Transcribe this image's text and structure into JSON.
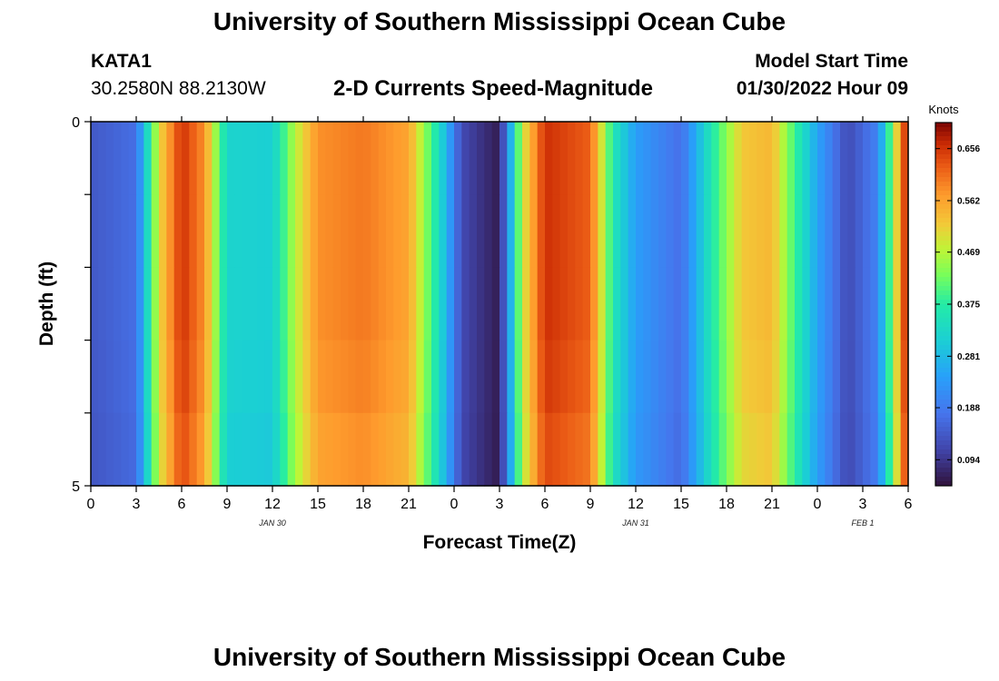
{
  "page": {
    "title": "University of Southern Mississippi Ocean Cube",
    "footer_title": "University of Southern Mississippi Ocean Cube",
    "station": "KATA1",
    "coords": "30.2580N  88.2130W",
    "subtitle": "2-D Currents Speed-Magnitude",
    "model_start_label": "Model Start Time",
    "model_start_value": "01/30/2022 Hour 09"
  },
  "chart_data": {
    "type": "heatmap",
    "title": "2-D Currents Speed-Magnitude",
    "xlabel": "Forecast Time(Z)",
    "ylabel": "Depth (ft)",
    "x_range_hours": [
      0,
      54
    ],
    "y_range": [
      0,
      5
    ],
    "y_ticks": [
      "0",
      "5"
    ],
    "x_tick_labels": [
      "0",
      "3",
      "6",
      "9",
      "12",
      "15",
      "18",
      "21",
      "0",
      "3",
      "6",
      "9",
      "12",
      "15",
      "18",
      "21",
      "0",
      "3",
      "6"
    ],
    "date_labels": [
      {
        "label": "JAN 30",
        "hour": 12
      },
      {
        "label": "JAN 31",
        "hour": 36
      },
      {
        "label": "FEB 1",
        "hour": 51
      }
    ],
    "colorbar": {
      "unit": "Knots",
      "min": 0.047,
      "max": 0.703,
      "ticks": [
        "0.656",
        "0.562",
        "0.469",
        "0.375",
        "0.281",
        "0.188",
        "0.094"
      ],
      "tick_values": [
        0.656,
        0.562,
        0.469,
        0.375,
        0.281,
        0.188,
        0.094
      ]
    },
    "depth_scale": [
      1.0,
      1.0,
      1.0,
      0.99,
      0.97
    ],
    "speed_profile": [
      {
        "hour": 0,
        "value": 0.14
      },
      {
        "hour": 3,
        "value": 0.17
      },
      {
        "hour": 4.5,
        "value": 0.5
      },
      {
        "hour": 6,
        "value": 0.66
      },
      {
        "hour": 7.5,
        "value": 0.58
      },
      {
        "hour": 9,
        "value": 0.32
      },
      {
        "hour": 12,
        "value": 0.31
      },
      {
        "hour": 13.5,
        "value": 0.47
      },
      {
        "hour": 15,
        "value": 0.58
      },
      {
        "hour": 18,
        "value": 0.6
      },
      {
        "hour": 21,
        "value": 0.56
      },
      {
        "hour": 23,
        "value": 0.34
      },
      {
        "hour": 24.5,
        "value": 0.12
      },
      {
        "hour": 27,
        "value": 0.06
      },
      {
        "hour": 28.5,
        "value": 0.48
      },
      {
        "hour": 30,
        "value": 0.66
      },
      {
        "hour": 33,
        "value": 0.62
      },
      {
        "hour": 34.5,
        "value": 0.36
      },
      {
        "hour": 36,
        "value": 0.24
      },
      {
        "hour": 39,
        "value": 0.17
      },
      {
        "hour": 41,
        "value": 0.36
      },
      {
        "hour": 43,
        "value": 0.52
      },
      {
        "hour": 45,
        "value": 0.54
      },
      {
        "hour": 47,
        "value": 0.34
      },
      {
        "hour": 48,
        "value": 0.25
      },
      {
        "hour": 50,
        "value": 0.12
      },
      {
        "hour": 52,
        "value": 0.2
      },
      {
        "hour": 53,
        "value": 0.45
      },
      {
        "hour": 54,
        "value": 0.7
      }
    ]
  }
}
